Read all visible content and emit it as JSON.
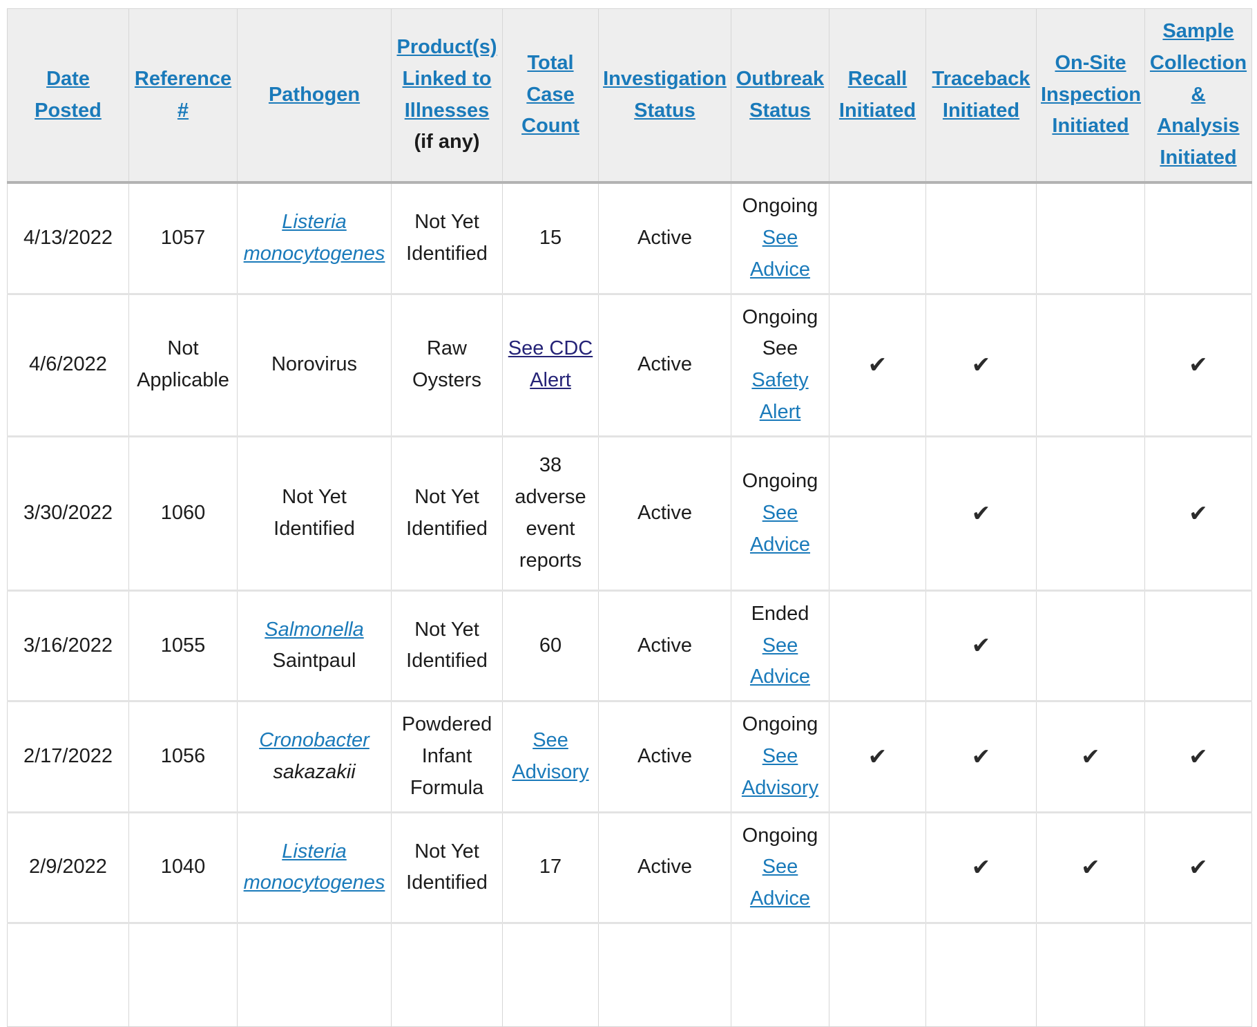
{
  "icons": {
    "check_mark": "✔"
  },
  "colors": {
    "link_blue": "#1a7aba",
    "visited_link": "#252377",
    "header_bg": "#eeeeee",
    "header_border": "#b3b3b3",
    "border": "#d6d6d6",
    "row_border": "#e3e3e3",
    "text": "#1c1c1c",
    "check": "#2b2b2b"
  },
  "table": {
    "columns": [
      {
        "key": "date",
        "label": "Date Posted"
      },
      {
        "key": "reference",
        "label": "Reference #"
      },
      {
        "key": "pathogen",
        "label": "Pathogen"
      },
      {
        "key": "product",
        "label": "Product(s) Linked to Illnesses",
        "note": "(if any)"
      },
      {
        "key": "total_case_count",
        "label": "Total Case Count"
      },
      {
        "key": "investigation_status",
        "label": "Investigation Status"
      },
      {
        "key": "outbreak_status",
        "label": "Outbreak Status"
      },
      {
        "key": "recall_initiated",
        "label": "Recall Initiated"
      },
      {
        "key": "traceback_initiated",
        "label": "Traceback Initiated"
      },
      {
        "key": "on_site_inspection_initiated",
        "label": "On-Site Inspection Initiated"
      },
      {
        "key": "sample_collection_analysis_initiated",
        "label": "Sample Collection & Analysis Initiated"
      }
    ],
    "rows": [
      {
        "date": "4/13/2022",
        "reference": "1057",
        "pathogen": [
          {
            "text": "Listeria monocytogenes",
            "type": "link",
            "italic": true
          }
        ],
        "product": "Not Yet Identified",
        "total_case_count": [
          {
            "text": "15",
            "type": "plain"
          }
        ],
        "investigation_status": "Active",
        "outbreak_status": [
          {
            "text": "Ongoing ",
            "type": "plain"
          },
          {
            "text": "See Advice",
            "type": "link"
          }
        ],
        "recall_initiated": false,
        "traceback_initiated": false,
        "on_site_inspection_initiated": false,
        "sample_collection_analysis_initiated": false
      },
      {
        "date": "4/6/2022",
        "reference": "Not Applicable",
        "pathogen": [
          {
            "text": "Norovirus",
            "type": "plain"
          }
        ],
        "product": "Raw Oysters",
        "total_case_count": [
          {
            "text": "See CDC Alert",
            "type": "visited"
          }
        ],
        "investigation_status": "Active",
        "outbreak_status": [
          {
            "text": "Ongoing See ",
            "type": "plain"
          },
          {
            "text": "Safety Alert",
            "type": "link"
          }
        ],
        "recall_initiated": true,
        "traceback_initiated": true,
        "on_site_inspection_initiated": false,
        "sample_collection_analysis_initiated": true
      },
      {
        "date": "3/30/2022",
        "reference": "1060",
        "pathogen": [
          {
            "text": "Not Yet Identified",
            "type": "plain"
          }
        ],
        "product": "Not Yet Identified",
        "total_case_count": [
          {
            "text": "38 adverse event reports",
            "type": "plain"
          }
        ],
        "investigation_status": "Active",
        "outbreak_status": [
          {
            "text": "Ongoing ",
            "type": "plain"
          },
          {
            "text": "See Advice",
            "type": "link"
          }
        ],
        "recall_initiated": false,
        "traceback_initiated": true,
        "on_site_inspection_initiated": false,
        "sample_collection_analysis_initiated": true
      },
      {
        "date": "3/16/2022",
        "reference": "1055",
        "pathogen": [
          {
            "text": "Salmonella",
            "type": "link",
            "italic": true
          },
          {
            "text": " Saintpaul",
            "type": "plain"
          }
        ],
        "product": "Not Yet Identified",
        "total_case_count": [
          {
            "text": "60",
            "type": "plain"
          }
        ],
        "investigation_status": "Active",
        "outbreak_status": [
          {
            "text": "Ended ",
            "type": "plain"
          },
          {
            "text": "See Advice",
            "type": "link"
          }
        ],
        "recall_initiated": false,
        "traceback_initiated": true,
        "on_site_inspection_initiated": false,
        "sample_collection_analysis_initiated": false
      },
      {
        "date": "2/17/2022",
        "reference": "1056",
        "pathogen": [
          {
            "text": "Cronobacter",
            "type": "link",
            "italic": true
          },
          {
            "text": " sakazakii",
            "type": "plain",
            "italic": true
          }
        ],
        "product": "Powdered Infant Formula",
        "total_case_count": [
          {
            "text": "See Advisory",
            "type": "link"
          }
        ],
        "investigation_status": "Active",
        "outbreak_status": [
          {
            "text": "Ongoing ",
            "type": "plain"
          },
          {
            "text": "See Advisory",
            "type": "link"
          }
        ],
        "recall_initiated": true,
        "traceback_initiated": true,
        "on_site_inspection_initiated": true,
        "sample_collection_analysis_initiated": true
      },
      {
        "date": "2/9/2022",
        "reference": "1040",
        "pathogen": [
          {
            "text": "Listeria monocytogenes",
            "type": "link",
            "italic": true
          }
        ],
        "product": "Not Yet Identified",
        "total_case_count": [
          {
            "text": "17",
            "type": "plain"
          }
        ],
        "investigation_status": "Active",
        "outbreak_status": [
          {
            "text": "Ongoing ",
            "type": "plain"
          },
          {
            "text": "See Advice",
            "type": "link"
          }
        ],
        "recall_initiated": false,
        "traceback_initiated": true,
        "on_site_inspection_initiated": true,
        "sample_collection_analysis_initiated": true
      }
    ]
  }
}
